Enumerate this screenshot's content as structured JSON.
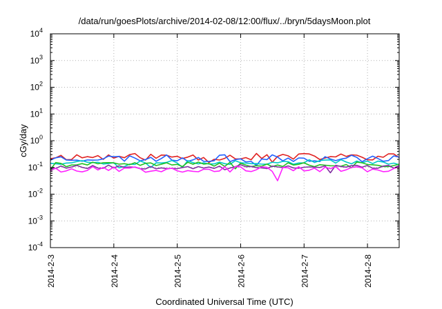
{
  "chart_data": {
    "type": "line",
    "title": "/data/run/goesPlots/archive/2014-02-08/12:00/flux/../bryn/5daysMoon.plot",
    "xlabel": "Coordinated Universal Time (UTC)",
    "ylabel": "cGy/day",
    "yscale": "log",
    "ylim": [
      0.0001,
      10000
    ],
    "xlim": [
      0,
      5.5
    ],
    "grid": true,
    "x_ticks": [
      {
        "value": 0,
        "label": "2014-2-3"
      },
      {
        "value": 1,
        "label": "2014-2-4"
      },
      {
        "value": 2,
        "label": "2014-2-5"
      },
      {
        "value": 3,
        "label": "2014-2-6"
      },
      {
        "value": 4,
        "label": "2014-2-7"
      },
      {
        "value": 5,
        "label": "2014-2-8"
      }
    ],
    "y_ticks": [
      {
        "value": 0.0001,
        "base": "10",
        "exp": "-4"
      },
      {
        "value": 0.001,
        "base": "10",
        "exp": "-3"
      },
      {
        "value": 0.01,
        "base": "10",
        "exp": "-2"
      },
      {
        "value": 0.1,
        "base": "10",
        "exp": "-1"
      },
      {
        "value": 1,
        "base": "10",
        "exp": "0"
      },
      {
        "value": 10,
        "base": "10",
        "exp": "1"
      },
      {
        "value": 100,
        "base": "10",
        "exp": "2"
      },
      {
        "value": 1000,
        "base": "10",
        "exp": "3"
      },
      {
        "value": 10000,
        "base": "10",
        "exp": "4"
      }
    ],
    "x_step_days": 0.0833,
    "series": [
      {
        "color": "#e02020",
        "level": 0.25,
        "jitter": 0.3,
        "seed": 11
      },
      {
        "color": "#2060ff",
        "level": 0.22,
        "jitter": 0.3,
        "seed": 23
      },
      {
        "color": "#00c8c8",
        "level": 0.16,
        "jitter": 0.22,
        "seed": 37
      },
      {
        "color": "#20c020",
        "level": 0.13,
        "jitter": 0.2,
        "seed": 41
      },
      {
        "color": "#8030a0",
        "level": 0.105,
        "jitter": 0.18,
        "seed": 53
      },
      {
        "color": "#ff20ff",
        "level": 0.085,
        "jitter": 0.25,
        "seed": 67
      }
    ]
  }
}
